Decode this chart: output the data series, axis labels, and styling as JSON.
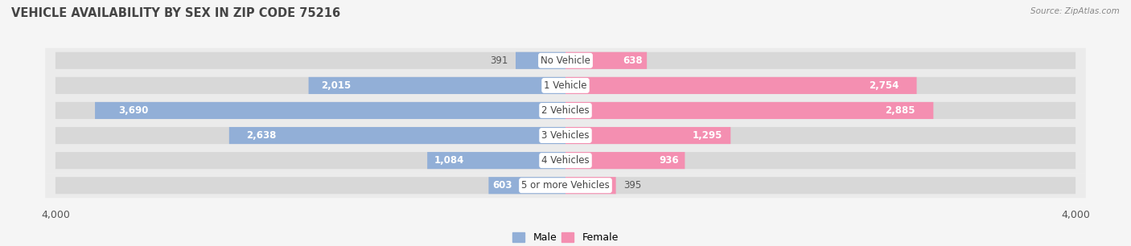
{
  "title": "VEHICLE AVAILABILITY BY SEX IN ZIP CODE 75216",
  "source": "Source: ZipAtlas.com",
  "categories": [
    "No Vehicle",
    "1 Vehicle",
    "2 Vehicles",
    "3 Vehicles",
    "4 Vehicles",
    "5 or more Vehicles"
  ],
  "male_values": [
    391,
    2015,
    3690,
    2638,
    1084,
    603
  ],
  "female_values": [
    638,
    2754,
    2885,
    1295,
    936,
    395
  ],
  "male_color": "#92afd7",
  "female_color": "#f48fb1",
  "male_color_dark": "#6a9cc9",
  "female_color_dark": "#e91e8c",
  "axis_max": 4000,
  "background_color": "#f5f5f5",
  "row_bg_color": "#ebebeb",
  "bar_height": 0.68,
  "label_fontsize": 8.5,
  "title_fontsize": 10.5,
  "legend_fontsize": 9,
  "value_threshold": 500,
  "inside_label_color_male": "white",
  "inside_label_color_female": "white",
  "outside_label_color": "#555555"
}
